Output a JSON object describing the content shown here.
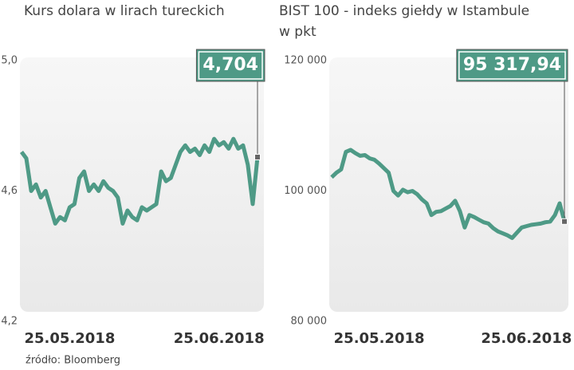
{
  "chart_data": [
    {
      "type": "line",
      "title": "Kurs dolara w lirach tureckich",
      "color": "#4e9a86",
      "categories": [
        null,
        null,
        null,
        null,
        null,
        null,
        null,
        null,
        null,
        null,
        "25.05.2018",
        null,
        null,
        null,
        null,
        null,
        null,
        null,
        null,
        null,
        null,
        null,
        null,
        null,
        null,
        null,
        null,
        null,
        null,
        null,
        null,
        null,
        null,
        null,
        null,
        null,
        null,
        null,
        null,
        null,
        null,
        "25.06.2018",
        null,
        null,
        null,
        null,
        null,
        null,
        null,
        null
      ],
      "values": [
        4.72,
        4.7,
        4.6,
        4.62,
        4.58,
        4.6,
        4.55,
        4.5,
        4.52,
        4.51,
        4.55,
        4.56,
        4.64,
        4.66,
        4.6,
        4.62,
        4.6,
        4.63,
        4.61,
        4.6,
        4.58,
        4.5,
        4.54,
        4.52,
        4.51,
        4.55,
        4.54,
        4.55,
        4.56,
        4.66,
        4.63,
        4.64,
        4.68,
        4.72,
        4.74,
        4.72,
        4.73,
        4.71,
        4.74,
        4.72,
        4.76,
        4.74,
        4.75,
        4.73,
        4.76,
        4.73,
        4.74,
        4.68,
        4.56,
        4.704
      ],
      "value_labels": [
        null,
        null,
        null,
        null,
        null,
        null,
        null,
        null,
        null,
        null,
        null,
        null,
        null,
        null,
        null,
        null,
        null,
        null,
        null,
        null,
        null,
        null,
        null,
        null,
        null,
        null,
        null,
        null,
        null,
        null,
        null,
        null,
        null,
        null,
        null,
        null,
        null,
        null,
        null,
        null,
        null,
        null,
        null,
        null,
        null,
        null,
        null,
        null,
        null,
        "4,704"
      ],
      "ylim": [
        4.2,
        5.0
      ],
      "yticks": [
        {
          "value": 4.2,
          "label": "4,2"
        },
        {
          "value": 4.6,
          "label": "4,6"
        },
        {
          "value": 5.0,
          "label": "5,0"
        }
      ]
    },
    {
      "type": "line",
      "title": "BIST 100 - indeks giełdy w Istambule",
      "subtitle": "w pkt",
      "color": "#4e9a86",
      "categories": [
        null,
        null,
        null,
        null,
        null,
        null,
        null,
        null,
        null,
        null,
        "25.05.2018",
        null,
        null,
        null,
        null,
        null,
        null,
        null,
        null,
        null,
        null,
        null,
        null,
        null,
        null,
        null,
        null,
        null,
        null,
        null,
        null,
        null,
        null,
        null,
        null,
        null,
        null,
        null,
        null,
        null,
        null,
        "25.06.2018",
        null,
        null,
        null,
        null,
        null,
        null,
        null,
        null
      ],
      "values": [
        102100,
        102800,
        103300,
        106000,
        106300,
        105800,
        105400,
        105500,
        105000,
        104800,
        104200,
        103500,
        102800,
        100000,
        99300,
        100200,
        99800,
        100000,
        99500,
        98700,
        98100,
        96300,
        96800,
        96900,
        97300,
        97700,
        98500,
        96900,
        94400,
        96300,
        96000,
        95600,
        95200,
        95000,
        94300,
        93800,
        93500,
        93200,
        92800,
        93600,
        94400,
        94600,
        94800,
        94900,
        95000,
        95200,
        95300,
        96300,
        98100,
        95317.94
      ],
      "value_labels": [
        null,
        null,
        null,
        null,
        null,
        null,
        null,
        null,
        null,
        null,
        null,
        null,
        null,
        null,
        null,
        null,
        null,
        null,
        null,
        null,
        null,
        null,
        null,
        null,
        null,
        null,
        null,
        null,
        null,
        null,
        null,
        null,
        null,
        null,
        null,
        null,
        null,
        null,
        null,
        null,
        null,
        null,
        null,
        null,
        null,
        null,
        null,
        null,
        null,
        "95 317,94"
      ],
      "ylim": [
        80000,
        120000
      ],
      "yticks": [
        {
          "value": 80000,
          "label": "80 000"
        },
        {
          "value": 100000,
          "label": "100 000"
        },
        {
          "value": 120000,
          "label": "120 000"
        }
      ]
    }
  ],
  "source": "źródło: Bloomberg"
}
